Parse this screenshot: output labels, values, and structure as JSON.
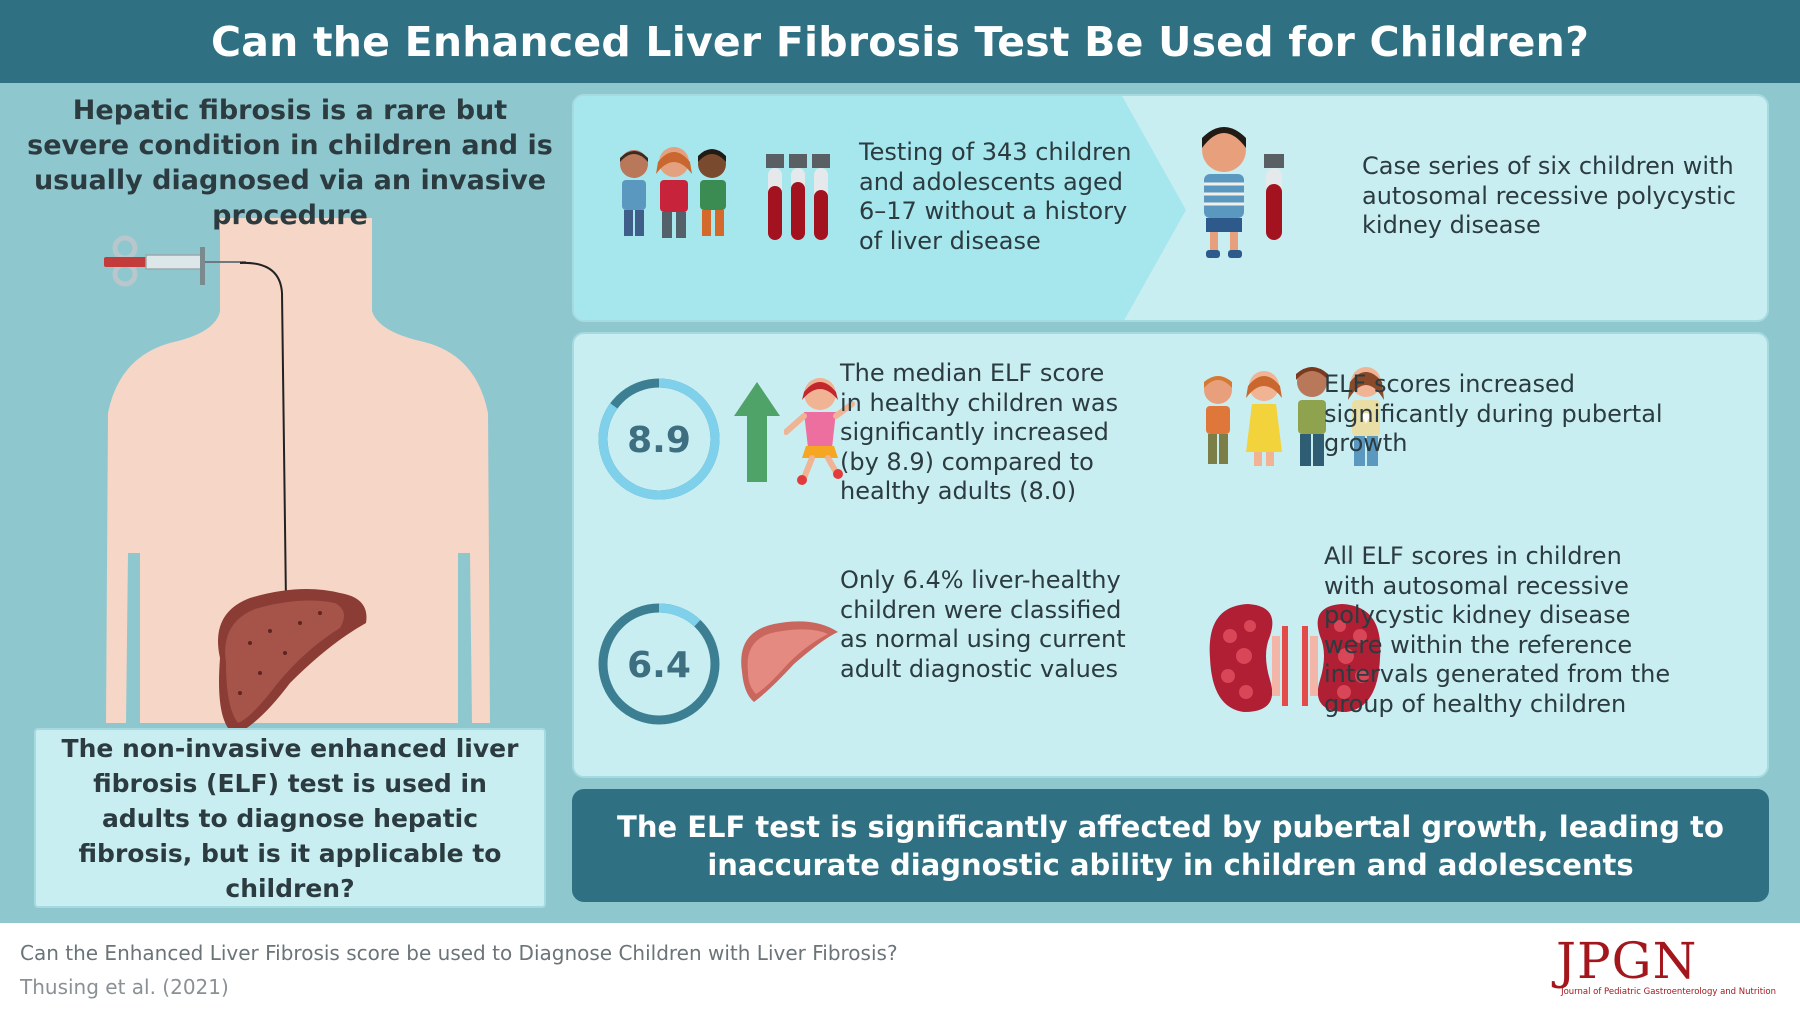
{
  "header": {
    "title": "Can the Enhanced Liver Fibrosis Test Be Used for Children?"
  },
  "left": {
    "intro": "Hepatic fibrosis is a rare but severe condition in children and is usually diagnosed via an invasive procedure",
    "question": "The non-invasive enhanced liver fibrosis (ELF) test is used in adults to diagnose hepatic fibrosis, but is it applicable to children?"
  },
  "top_panel": {
    "cohort_line1": "Testing of 343 children",
    "cohort_line2": "and adolescents aged",
    "cohort_line3": "6–17 without a history",
    "cohort_line4": "of liver disease",
    "case_line1": "Case series of six children with",
    "case_line2": "autosomal recessive polycystic",
    "case_line3": "kidney disease"
  },
  "findings": {
    "score1": {
      "value": "8.9",
      "fraction": 0.85
    },
    "score2": {
      "value": "6.4",
      "fraction": 0.12
    },
    "median_line1": "The median ELF score",
    "median_line2": "in healthy children was",
    "median_line3": "significantly increased",
    "median_line4": "(by 8.9) compared to",
    "median_line5": "healthy adults (8.0)",
    "pubertal_line1": "ELF scores increased",
    "pubertal_line2": "significantly during pubertal",
    "pubertal_line3": "growth",
    "normal_line1": "Only 6.4% liver-healthy",
    "normal_line2": "children were classified",
    "normal_line3": "as normal using current",
    "normal_line4": "adult diagnostic values",
    "arpkd_line1": "All ELF scores in children",
    "arpkd_line2": "with autosomal recessive",
    "arpkd_line3": "polycystic kidney disease",
    "arpkd_line4": "were within the reference",
    "arpkd_line5": "intervals generated from the",
    "arpkd_line6": "group of healthy children"
  },
  "conclusion": "The ELF test is significantly affected by pubertal growth, leading to inaccurate diagnostic ability in children and adolescents",
  "footer": {
    "title": "Can the Enhanced Liver Fibrosis score be used to Diagnose Children with Liver Fibrosis?",
    "citation": "Thusing et al. (2021)",
    "logo": "JPGN",
    "logo_sub": "Journal of Pediatric Gastroenterology and Nutrition"
  },
  "colors": {
    "header": "#2f7183",
    "panel": "#c8eef2",
    "background": "#8fc7cf",
    "ring": "#3d7f92",
    "ring_accent": "#7fd0ea",
    "arrow_up": "#4fa268",
    "logo": "#a3171c"
  },
  "icons": [
    "syringe-icon",
    "liver-icon",
    "children-group-icon",
    "blood-tubes-icon",
    "child-icon",
    "arrow-up-icon",
    "jumping-girl-icon",
    "kidneys-icon"
  ]
}
